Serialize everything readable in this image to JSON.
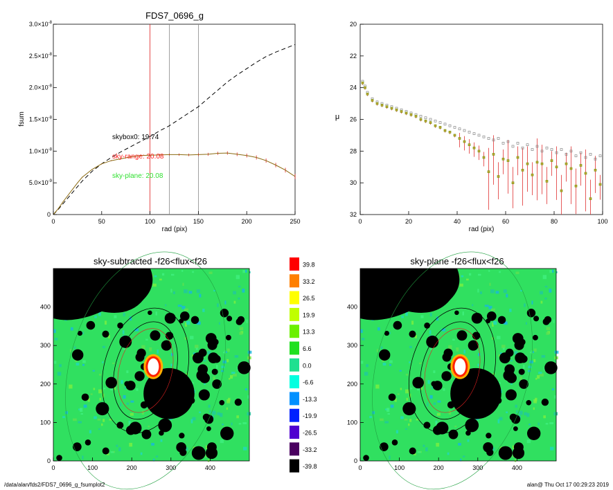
{
  "chart_data": [
    {
      "type": "line",
      "title": "FDS7_0696_g",
      "xlabel": "rad (pix)",
      "ylabel": "fsum",
      "xlim": [
        0,
        250
      ],
      "ylim": [
        0,
        3e-08
      ],
      "xticks": [
        "0",
        "50",
        "100",
        "150",
        "200",
        "250"
      ],
      "yticks": [
        {
          "base": "0",
          "exp": ""
        },
        {
          "base": "5.0×10",
          "exp": "-9"
        },
        {
          "base": "1.0×10",
          "exp": "-8"
        },
        {
          "base": "1.5×10",
          "exp": "-8"
        },
        {
          "base": "2.0×10",
          "exp": "-8"
        },
        {
          "base": "2.5×10",
          "exp": "-8"
        },
        {
          "base": "3.0×10",
          "exp": "-8"
        }
      ],
      "ytick_values": [
        0,
        5e-09,
        1e-08,
        1.5e-08,
        2e-08,
        2.5e-08,
        3e-08
      ],
      "vlines": [
        {
          "x": 100,
          "color": "#e02020"
        },
        {
          "x": 120,
          "color": "#888888"
        },
        {
          "x": 150,
          "color": "#888888"
        }
      ],
      "annotations": [
        {
          "text": "skybox0: 19.74",
          "color": "#000000"
        },
        {
          "text": "sky-range: 20.08",
          "color": "#ff2020"
        },
        {
          "text": "sky-plane: 20.08",
          "color": "#30e030"
        }
      ],
      "series": [
        {
          "style": "dashed",
          "color": "#000000",
          "x": [
            0,
            5,
            10,
            15,
            20,
            25,
            30,
            40,
            50,
            60,
            70,
            80,
            90,
            100,
            110,
            120,
            130,
            140,
            150,
            160,
            170,
            180,
            190,
            200,
            210,
            220,
            230,
            240,
            250
          ],
          "y": [
            0,
            8e-10,
            1.7e-09,
            2.6e-09,
            3.5e-09,
            4.4e-09,
            5.3e-09,
            6.8e-09,
            8e-09,
            9e-09,
            9.9e-09,
            1.07e-08,
            1.15e-08,
            1.23e-08,
            1.32e-08,
            1.4e-08,
            1.5e-08,
            1.6e-08,
            1.7e-08,
            1.83e-08,
            1.96e-08,
            2.09e-08,
            2.2e-08,
            2.3e-08,
            2.4e-08,
            2.49e-08,
            2.56e-08,
            2.62e-08,
            2.68e-08
          ]
        },
        {
          "style": "errorbar",
          "color": "#e02020",
          "x": [
            0,
            5,
            10,
            15,
            20,
            25,
            30,
            40,
            50,
            60,
            70,
            80,
            90,
            100,
            110,
            120,
            130,
            140,
            150,
            160,
            170,
            180,
            190,
            200,
            210,
            220,
            230,
            240,
            250
          ],
          "y": [
            0,
            9e-10,
            2e-09,
            3e-09,
            4e-09,
            5e-09,
            5.9e-09,
            7.1e-09,
            8e-09,
            8.5e-09,
            8.8e-09,
            9.1e-09,
            9.3e-09,
            9.35e-09,
            9.4e-09,
            9.45e-09,
            9.45e-09,
            9.4e-09,
            9.45e-09,
            9.5e-09,
            9.65e-09,
            9.7e-09,
            9.5e-09,
            9.3e-09,
            9e-09,
            8.5e-09,
            7.8e-09,
            7e-09,
            6e-09
          ],
          "err": [
            0,
            5e-11,
            5e-11,
            5e-11,
            5e-11,
            5e-11,
            5e-11,
            6e-11,
            7e-11,
            8e-11,
            9e-11,
            1e-10,
            1.2e-10,
            1.4e-10,
            1.5e-10,
            1.7e-10,
            1.8e-10,
            2e-10,
            2.2e-10,
            2.3e-10,
            2.5e-10,
            2.7e-10,
            2.8e-10,
            3e-10,
            3.2e-10,
            3.3e-10,
            3.5e-10,
            3.7e-10,
            4e-10
          ]
        }
      ]
    },
    {
      "type": "scatter",
      "title": "",
      "xlabel": "rad (pix)",
      "ylabel": "μ",
      "xlim": [
        0,
        100
      ],
      "ylim": [
        32,
        20
      ],
      "xticks": [
        "0",
        "20",
        "40",
        "60",
        "80",
        "100"
      ],
      "yticks": [
        "20",
        "22",
        "24",
        "26",
        "28",
        "30",
        "32"
      ],
      "series": [
        {
          "name": "",
          "marker": "square",
          "color": "#888888",
          "x": [
            1,
            2,
            3,
            5,
            7,
            9,
            11,
            13,
            15,
            17,
            19,
            21,
            23,
            25,
            27,
            29,
            31,
            33,
            35,
            37,
            39,
            41,
            43,
            45,
            47,
            49,
            51,
            53,
            55,
            57,
            59,
            61,
            63,
            65,
            67,
            69,
            71,
            73,
            75,
            77,
            79,
            81,
            83,
            85,
            87,
            89,
            91,
            93,
            95,
            97,
            99
          ],
          "y": [
            23.6,
            23.9,
            24.3,
            24.7,
            24.9,
            25.0,
            25.1,
            25.2,
            25.3,
            25.4,
            25.5,
            25.6,
            25.7,
            25.8,
            25.9,
            26.0,
            26.1,
            26.2,
            26.3,
            26.4,
            26.5,
            26.6,
            26.7,
            26.8,
            26.9,
            27.0,
            27.1,
            27.2,
            27.3,
            27.2,
            27.5,
            27.4,
            27.7,
            27.5,
            27.8,
            27.6,
            27.9,
            27.7,
            28.0,
            27.8,
            27.9,
            28.1,
            27.9,
            28.2,
            28.0,
            28.3,
            28.1,
            28.4,
            28.2,
            28.5,
            28.3
          ]
        },
        {
          "name": "",
          "marker": "square",
          "color": "#7aa020",
          "x": [
            1,
            2,
            3,
            5,
            7,
            9,
            11,
            13,
            15,
            17,
            19,
            21,
            23,
            25,
            27,
            29,
            31,
            33,
            35,
            37,
            39,
            41,
            43,
            45,
            47,
            49,
            51,
            53,
            55,
            57,
            59,
            61,
            63,
            65,
            67,
            69,
            71,
            73,
            75,
            77,
            79,
            81,
            83,
            85,
            87,
            89,
            91,
            93,
            95,
            97,
            99
          ],
          "y": [
            23.7,
            24.0,
            24.4,
            24.8,
            25.0,
            25.1,
            25.2,
            25.3,
            25.4,
            25.5,
            25.6,
            25.7,
            25.8,
            26.0,
            26.1,
            26.2,
            26.4,
            26.5,
            26.7,
            26.8,
            27.0,
            27.2,
            27.4,
            27.6,
            27.8,
            28.0,
            28.4,
            29.3,
            28.2,
            29.6,
            28.5,
            28.6,
            30.0,
            28.4,
            29.2,
            28.8,
            29.5,
            28.7,
            28.8,
            29.9,
            28.6,
            29.0,
            30.5,
            28.8,
            29.1,
            30.2,
            28.9,
            29.4,
            31.0,
            29.2,
            30.1
          ]
        }
      ]
    },
    {
      "type": "heatmap",
      "title": "sky-subtracted -f26<flux<f26",
      "xlim": [
        0,
        500
      ],
      "ylim": [
        0,
        500
      ],
      "xticks": [
        "0",
        "100",
        "200",
        "300",
        "400"
      ],
      "yticks": [
        "0",
        "100",
        "200",
        "300",
        "400"
      ]
    },
    {
      "type": "heatmap",
      "title": "sky-plane -f26<flux<f26",
      "xlim": [
        0,
        500
      ],
      "ylim": [
        0,
        500
      ],
      "xticks": [
        "0",
        "100",
        "200",
        "300",
        "400"
      ],
      "yticks": [
        "0",
        "100",
        "200",
        "300",
        "400"
      ]
    }
  ],
  "colorbar": {
    "labels": [
      "39.8",
      "33.2",
      "26.5",
      "19.9",
      "13.3",
      "6.6",
      "0.0",
      "-6.6",
      "-13.3",
      "-19.9",
      "-26.5",
      "-33.2",
      "-39.8"
    ],
    "colors": [
      "#ff0000",
      "#ff7f00",
      "#ffff00",
      "#c0ff00",
      "#6cf000",
      "#20e020",
      "#20e090",
      "#00ffe0",
      "#0090ff",
      "#0020ff",
      "#5000d0",
      "#4a0060",
      "#000000"
    ]
  },
  "footer": {
    "left": "/data/alan/fds2/FDS7_0696_g_fsumplot2",
    "right": "alan@  Thu Oct 17 00:29:23 2019"
  }
}
